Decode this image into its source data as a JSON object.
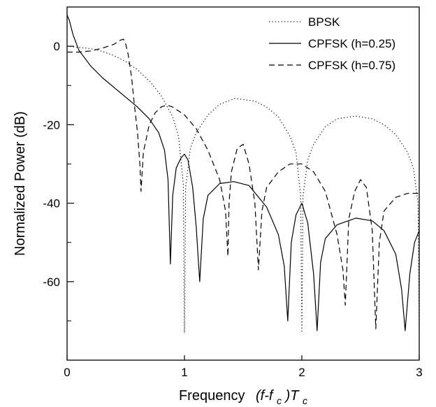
{
  "chart_data": {
    "type": "line",
    "title": "",
    "xlabel": "Frequency",
    "xlabel_math": {
      "open": "(f-f",
      "sub": "c",
      "close": ")T",
      "sub2": "c"
    },
    "ylabel": "Normalized Power (dB)",
    "xlim": [
      0,
      3
    ],
    "ylim": [
      -80,
      10
    ],
    "xticks": [
      0,
      1,
      2,
      3
    ],
    "xtick_labels": [
      "0",
      "1",
      "2",
      "3"
    ],
    "yticks": [
      0,
      -20,
      -40,
      -60
    ],
    "ytick_labels": [
      "0",
      "-20",
      "-40",
      "-60"
    ],
    "minor_yticks": [
      10,
      -10,
      -30,
      -50,
      -70
    ],
    "grid": false,
    "legend_position": "top-right",
    "series": [
      {
        "name": "BPSK",
        "style": "dotted",
        "x": [
          0,
          0.2,
          0.3,
          0.4,
          0.5,
          0.6,
          0.7,
          0.8,
          0.9,
          0.95,
          0.99,
          1.0,
          1.01,
          1.05,
          1.1,
          1.2,
          1.3,
          1.43,
          1.6,
          1.7,
          1.8,
          1.9,
          1.95,
          1.99,
          2.0,
          2.01,
          2.05,
          2.1,
          2.2,
          2.3,
          2.46,
          2.6,
          2.7,
          2.8,
          2.9,
          2.95,
          2.99,
          3.0
        ],
        "y": [
          0,
          -0.6,
          -1.3,
          -2.4,
          -3.9,
          -6.0,
          -8.8,
          -12.5,
          -18.0,
          -23.0,
          -35.0,
          -73.0,
          -36.0,
          -26.0,
          -22.0,
          -17.5,
          -14.8,
          -13.3,
          -14.0,
          -15.5,
          -18.0,
          -23.0,
          -27.0,
          -38.0,
          -73.0,
          -38.0,
          -29.0,
          -25.0,
          -20.5,
          -18.5,
          -17.8,
          -18.5,
          -20.0,
          -22.5,
          -27.0,
          -31.0,
          -40.0,
          -73.0
        ]
      },
      {
        "name": "CPFSK (h=0.25)",
        "style": "solid",
        "x": [
          0,
          0.02,
          0.05,
          0.1,
          0.15,
          0.2,
          0.3,
          0.4,
          0.5,
          0.6,
          0.7,
          0.78,
          0.83,
          0.86,
          0.88,
          0.9,
          0.93,
          0.97,
          1.0,
          1.03,
          1.07,
          1.1,
          1.13,
          1.16,
          1.2,
          1.3,
          1.42,
          1.55,
          1.7,
          1.8,
          1.85,
          1.88,
          1.91,
          1.95,
          2.0,
          2.05,
          2.1,
          2.13,
          2.16,
          2.2,
          2.3,
          2.46,
          2.6,
          2.7,
          2.8,
          2.85,
          2.88,
          2.92,
          2.96,
          3.0
        ],
        "y": [
          8.0,
          6.5,
          3.0,
          -1.0,
          -3.0,
          -5.0,
          -8.0,
          -10.5,
          -13.0,
          -15.5,
          -18.5,
          -22.0,
          -26.5,
          -34.0,
          -55.5,
          -38.0,
          -31.0,
          -28.5,
          -27.5,
          -29.0,
          -36.0,
          -46.0,
          -60.0,
          -44.0,
          -38.0,
          -35.0,
          -34.5,
          -35.5,
          -41.0,
          -48.0,
          -56.0,
          -70.0,
          -50.0,
          -43.0,
          -40.0,
          -45.0,
          -58.0,
          -72.5,
          -55.0,
          -49.0,
          -45.5,
          -43.8,
          -44.5,
          -47.0,
          -53.0,
          -62.0,
          -72.5,
          -58.0,
          -50.0,
          -47.0
        ]
      },
      {
        "name": "CPFSK (h=0.75)",
        "style": "dashed",
        "x": [
          0,
          0.1,
          0.2,
          0.3,
          0.4,
          0.45,
          0.48,
          0.5,
          0.52,
          0.55,
          0.57,
          0.6,
          0.62,
          0.63,
          0.65,
          0.7,
          0.75,
          0.8,
          0.85,
          0.9,
          1.0,
          1.1,
          1.2,
          1.3,
          1.35,
          1.37,
          1.38,
          1.4,
          1.45,
          1.5,
          1.55,
          1.6,
          1.63,
          1.66,
          1.7,
          1.8,
          1.9,
          2.0,
          2.1,
          2.2,
          2.3,
          2.35,
          2.37,
          2.4,
          2.45,
          2.5,
          2.55,
          2.6,
          2.63,
          2.66,
          2.7,
          2.8,
          2.9,
          3.0
        ],
        "y": [
          -1.5,
          -1.5,
          -1.2,
          -0.5,
          0.5,
          1.5,
          1.8,
          0.5,
          -2.0,
          -8.0,
          -14.0,
          -22.0,
          -30.0,
          -37.0,
          -27.0,
          -20.0,
          -17.0,
          -15.5,
          -15.0,
          -15.5,
          -17.5,
          -21.0,
          -26.5,
          -34.0,
          -42.0,
          -53.5,
          -40.0,
          -32.0,
          -26.0,
          -25.0,
          -30.0,
          -40.0,
          -57.0,
          -42.0,
          -36.0,
          -32.0,
          -30.0,
          -30.0,
          -32.0,
          -37.0,
          -48.0,
          -57.0,
          -66.0,
          -44.0,
          -37.0,
          -34.0,
          -36.0,
          -47.0,
          -72.0,
          -50.0,
          -42.0,
          -38.5,
          -37.5,
          -37.5
        ]
      }
    ]
  }
}
